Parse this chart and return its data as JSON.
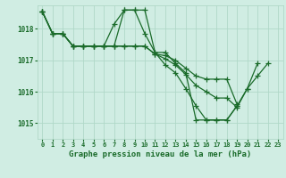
{
  "background_color": "#d0ede3",
  "grid_color": "#b0d8c8",
  "line_color": "#1a6b2a",
  "marker": "+",
  "markersize": 4,
  "linewidth": 0.9,
  "title": "Graphe pression niveau de la mer (hPa)",
  "xlim": [
    -0.5,
    23.5
  ],
  "ylim": [
    1014.5,
    1018.75
  ],
  "yticks": [
    1015,
    1016,
    1017,
    1018
  ],
  "xticks": [
    0,
    1,
    2,
    3,
    4,
    5,
    6,
    7,
    8,
    9,
    10,
    11,
    12,
    13,
    14,
    15,
    16,
    17,
    18,
    19,
    20,
    21,
    22,
    23
  ],
  "series": [
    {
      "x": [
        0,
        1,
        2,
        3,
        4,
        5,
        6,
        7,
        8,
        9,
        10,
        11,
        12,
        13,
        14,
        15,
        16,
        17,
        18,
        19,
        20,
        21
      ],
      "y": [
        1018.55,
        1017.85,
        1017.85,
        1017.45,
        1017.45,
        1017.45,
        1017.45,
        1018.15,
        1018.6,
        1018.6,
        1017.85,
        1017.25,
        1016.85,
        1016.6,
        1016.1,
        1015.55,
        1015.1,
        1015.1,
        1015.1,
        1015.55,
        null,
        null
      ]
    },
    {
      "x": [
        0,
        1,
        2,
        3,
        4,
        5,
        6,
        7,
        8,
        9,
        10,
        11,
        12,
        13,
        14,
        15,
        16,
        17,
        18,
        19,
        20,
        21,
        22
      ],
      "y": [
        1018.55,
        1017.85,
        1017.85,
        1017.45,
        1017.45,
        1017.45,
        1017.45,
        1017.45,
        1018.6,
        1018.6,
        1018.6,
        1017.25,
        1017.25,
        1016.9,
        1016.6,
        1015.1,
        1015.1,
        1015.1,
        1015.1,
        1015.55,
        1016.1,
        1016.9,
        null
      ]
    },
    {
      "x": [
        0,
        1,
        2,
        3,
        4,
        5,
        6,
        7,
        8,
        9,
        10,
        11,
        12,
        13,
        14,
        15,
        16,
        17,
        18,
        19
      ],
      "y": [
        1018.55,
        1017.85,
        1017.85,
        1017.45,
        1017.45,
        1017.45,
        1017.45,
        1017.45,
        1017.45,
        1017.45,
        1017.45,
        1017.2,
        1017.15,
        1017.0,
        1016.75,
        1016.5,
        1016.4,
        1016.4,
        1016.4,
        1015.6
      ]
    },
    {
      "x": [
        0,
        1,
        2,
        3,
        4,
        5,
        6,
        7,
        8,
        9,
        10,
        11,
        12,
        13,
        14,
        15,
        16,
        17,
        18,
        19,
        20,
        21,
        22
      ],
      "y": [
        1018.55,
        1017.85,
        1017.85,
        1017.45,
        1017.45,
        1017.45,
        1017.45,
        1017.45,
        1017.45,
        1017.45,
        1017.45,
        1017.2,
        1017.05,
        1016.85,
        1016.55,
        1016.2,
        1016.0,
        1015.8,
        1015.8,
        1015.5,
        1016.1,
        1016.5,
        1016.9
      ]
    }
  ]
}
